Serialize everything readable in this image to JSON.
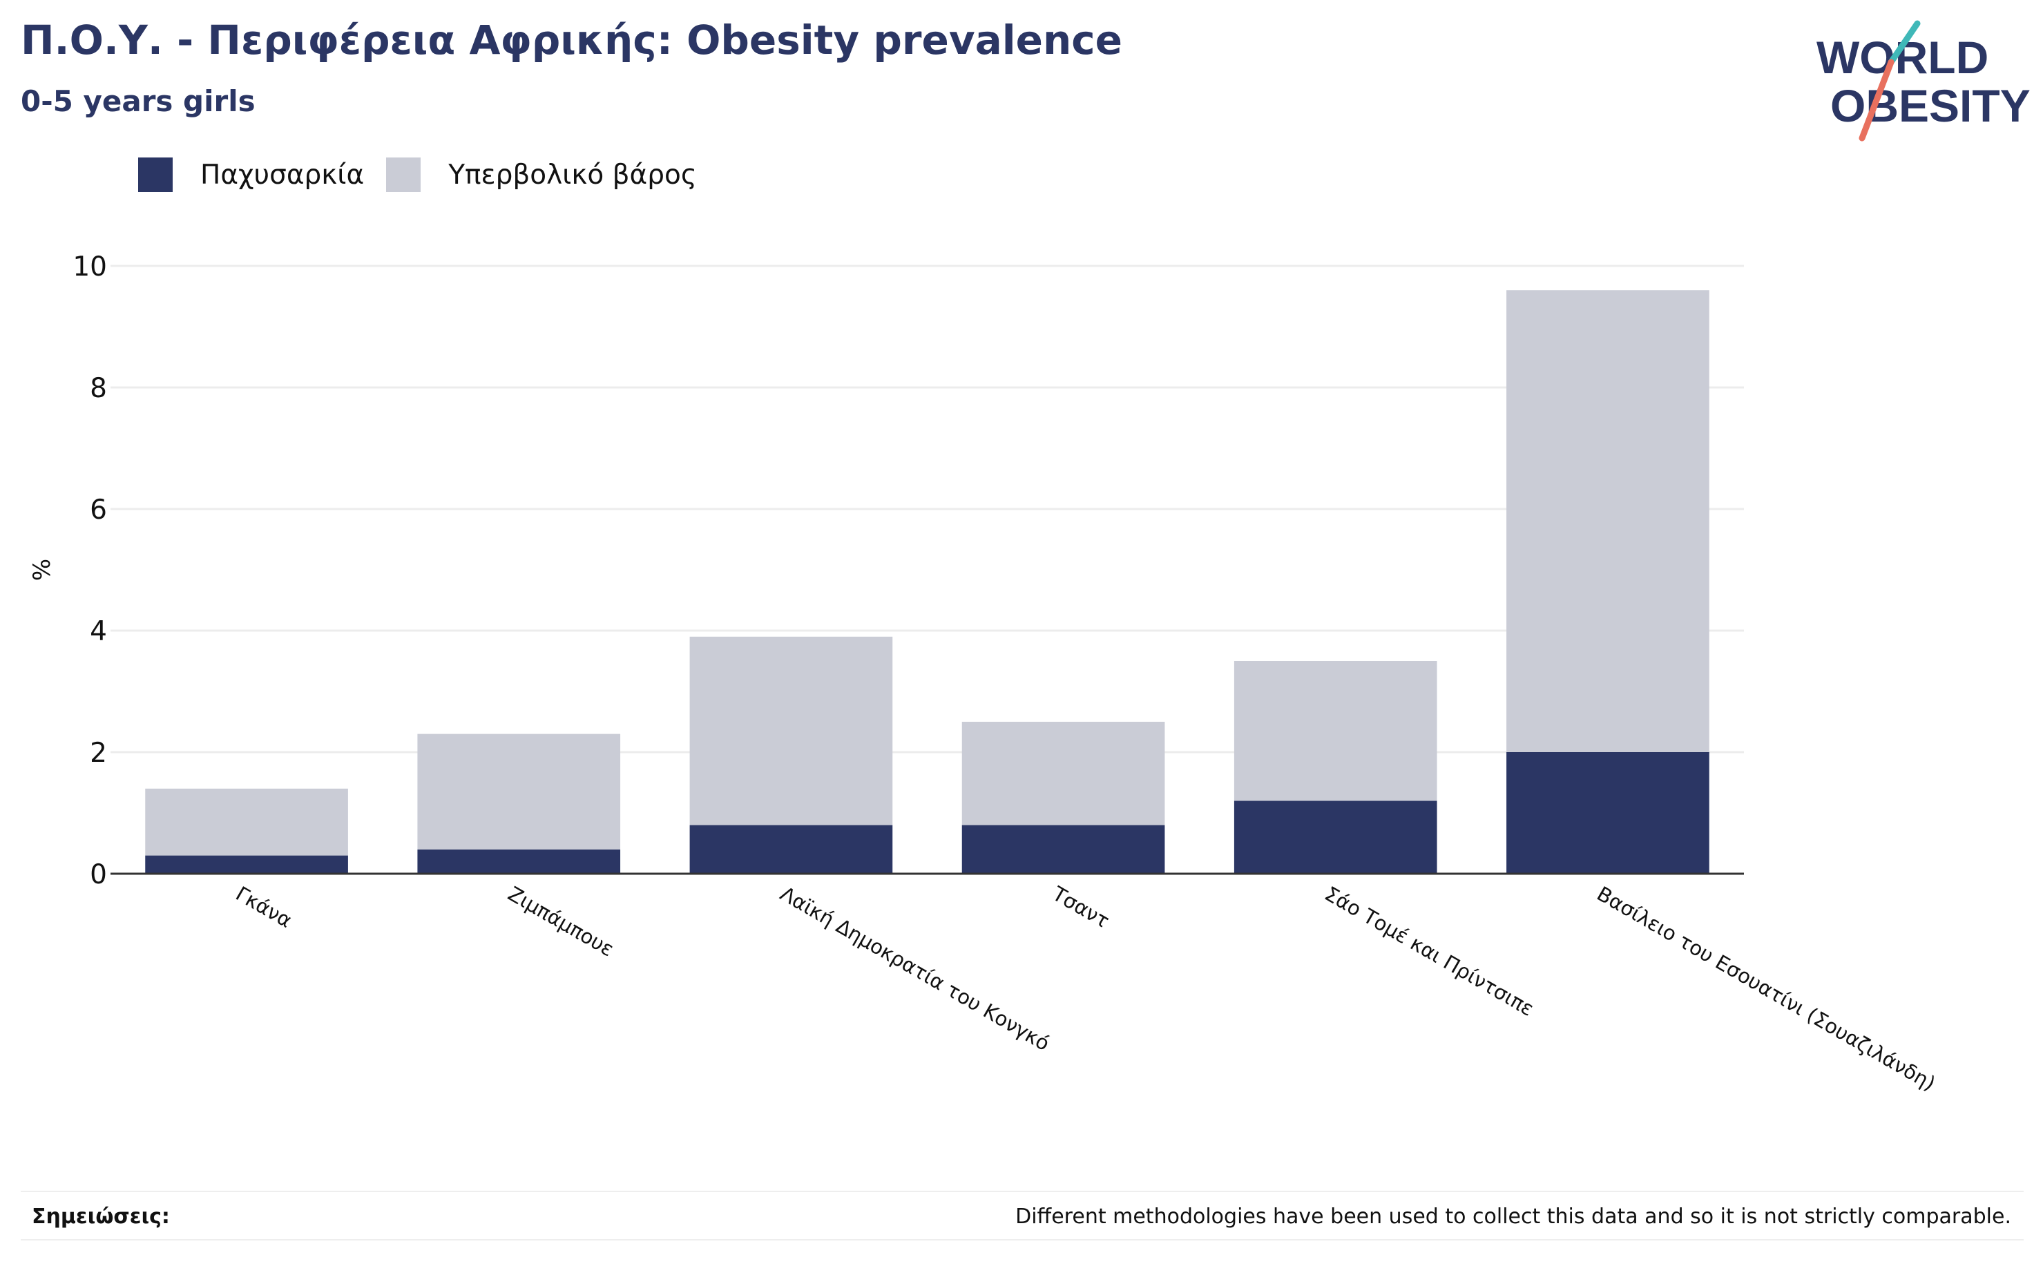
{
  "header": {
    "title": "Π.Ο.Υ. - Περιφέρεια Αφρικής: Obesity prevalence",
    "subtitle": "0-5 years girls"
  },
  "logo": {
    "line1": "WORLD",
    "line2": "OBESITY",
    "text_color": "#2b3664",
    "accent_teal": "#3fb8b8",
    "accent_coral": "#e8705e"
  },
  "colors": {
    "obesity": "#2b3664",
    "overweight": "#caccd6",
    "axis": "#333333",
    "grid": "#ececec",
    "text": "#111111"
  },
  "chart_data": {
    "type": "bar",
    "stacked": true,
    "categories": [
      "Γκάνα",
      "Ζιμπάμπουε",
      "Λαϊκή Δημοκρατία του Κονγκό",
      "Τσαντ",
      "Σάο Τομέ και Πρίντσιπε",
      "Βασίλειο του Εσουατίνι (Σουαζιλάνδη)"
    ],
    "series": [
      {
        "name": "Παχυσαρκία",
        "values": [
          0.3,
          0.4,
          0.8,
          0.8,
          1.2,
          2.0
        ]
      },
      {
        "name": "Υπερβολικό βάρος",
        "values": [
          1.1,
          1.9,
          3.1,
          1.7,
          2.3,
          7.6
        ]
      }
    ],
    "ylabel": "%",
    "ylim": [
      0,
      10
    ],
    "yticks": [
      0,
      2,
      4,
      6,
      8,
      10
    ],
    "grid": true,
    "legend_position": "top-left"
  },
  "notes": {
    "label": "Σημειώσεις:",
    "text": "Different methodologies have been used to collect this data and so it is not strictly comparable."
  }
}
